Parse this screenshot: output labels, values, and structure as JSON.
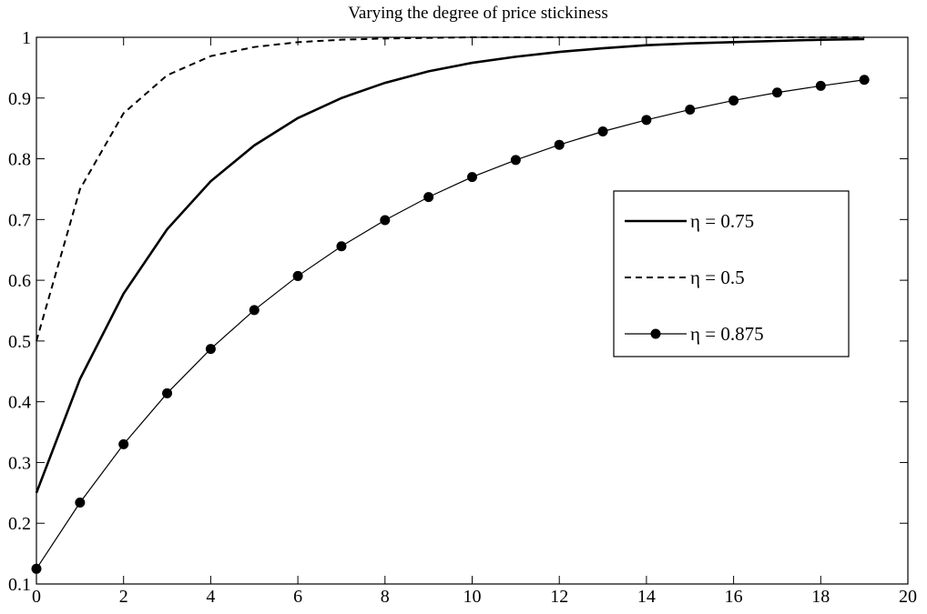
{
  "chart_data": {
    "type": "line",
    "title": "Varying the degree of price stickiness",
    "xlabel": "",
    "ylabel": "",
    "xlim": [
      0,
      20
    ],
    "ylim": [
      0.1,
      1
    ],
    "xticks": [
      0,
      2,
      4,
      6,
      8,
      10,
      12,
      14,
      16,
      18,
      20
    ],
    "yticks": [
      0.1,
      0.2,
      0.3,
      0.4,
      0.5,
      0.6,
      0.7,
      0.8,
      0.9,
      1
    ],
    "ytick_labels": [
      "0.1",
      "0.2",
      "0.3",
      "0.4",
      "0.5",
      "0.6",
      "0.7",
      "0.8",
      "0.9",
      "1"
    ],
    "grid": false,
    "legend_position": "right",
    "x": [
      0,
      1,
      2,
      3,
      4,
      5,
      6,
      7,
      8,
      9,
      10,
      11,
      12,
      13,
      14,
      15,
      16,
      17,
      18,
      19
    ],
    "series": [
      {
        "name": "η = 0.75",
        "style": "solid-thick",
        "values": [
          0.25,
          0.4375,
          0.578,
          0.684,
          0.763,
          0.822,
          0.867,
          0.9,
          0.925,
          0.944,
          0.958,
          0.968,
          0.976,
          0.982,
          0.987,
          0.99,
          0.992,
          0.994,
          0.996,
          0.997
        ]
      },
      {
        "name": "η = 0.5",
        "style": "dashed",
        "values": [
          0.5,
          0.75,
          0.875,
          0.9375,
          0.969,
          0.984,
          0.992,
          0.996,
          0.998,
          0.999,
          1.0,
          1.0,
          1.0,
          1.0,
          1.0,
          1.0,
          1.0,
          1.0,
          1.0,
          1.0
        ]
      },
      {
        "name": "η = 0.875",
        "style": "solid-markers",
        "values": [
          0.125,
          0.234,
          0.33,
          0.414,
          0.487,
          0.551,
          0.607,
          0.656,
          0.699,
          0.737,
          0.77,
          0.798,
          0.823,
          0.845,
          0.864,
          0.881,
          0.896,
          0.909,
          0.92,
          0.93
        ]
      }
    ]
  }
}
